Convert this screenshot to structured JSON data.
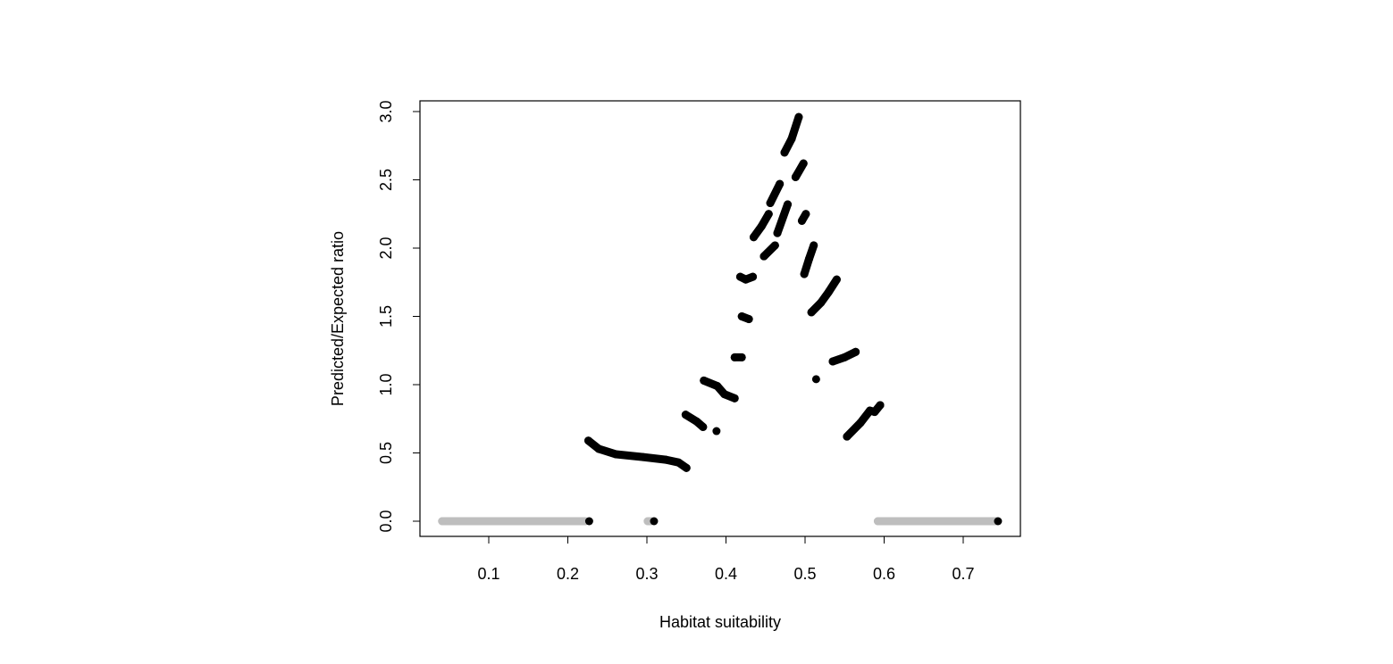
{
  "chart_data": {
    "type": "scatter",
    "title": "",
    "xlabel": "Habitat suitability",
    "ylabel": "Predicted/Expected ratio",
    "xlim": [
      0.03,
      0.77
    ],
    "ylim": [
      -0.11,
      3.08
    ],
    "xticks": [
      0.1,
      0.2,
      0.3,
      0.4,
      0.5,
      0.6,
      0.7
    ],
    "xtick_labels": [
      "0.1",
      "0.2",
      "0.3",
      "0.4",
      "0.5",
      "0.6",
      "0.7"
    ],
    "yticks": [
      0.0,
      0.5,
      1.0,
      1.5,
      2.0,
      2.5,
      3.0
    ],
    "ytick_labels": [
      "0.0",
      "0.5",
      "1.0",
      "1.5",
      "2.0",
      "2.5",
      "3.0"
    ],
    "grid": false,
    "colors": {
      "observed": "#000000",
      "zero": "#bebebe"
    },
    "gray_runs": [
      [
        [
          0.041,
          0
        ],
        [
          0.222,
          0
        ]
      ],
      [
        [
          0.301,
          0
        ],
        [
          0.305,
          0
        ]
      ],
      [
        [
          0.592,
          0
        ],
        [
          0.742,
          0
        ]
      ]
    ],
    "black_runs": [
      [
        [
          0.227,
          0
        ]
      ],
      [
        [
          0.309,
          0
        ]
      ],
      [
        [
          0.744,
          0
        ]
      ],
      [
        [
          0.226,
          0.59
        ],
        [
          0.239,
          0.53
        ],
        [
          0.261,
          0.49
        ],
        [
          0.295,
          0.47
        ],
        [
          0.324,
          0.45
        ],
        [
          0.34,
          0.43
        ],
        [
          0.35,
          0.39
        ]
      ],
      [
        [
          0.349,
          0.78
        ],
        [
          0.363,
          0.73
        ],
        [
          0.371,
          0.69
        ]
      ],
      [
        [
          0.388,
          0.66
        ]
      ],
      [
        [
          0.372,
          1.03
        ],
        [
          0.389,
          0.99
        ],
        [
          0.398,
          0.93
        ],
        [
          0.411,
          0.9
        ]
      ],
      [
        [
          0.411,
          1.2
        ],
        [
          0.42,
          1.2
        ]
      ],
      [
        [
          0.42,
          1.5
        ],
        [
          0.429,
          1.48
        ]
      ],
      [
        [
          0.418,
          1.79
        ],
        [
          0.425,
          1.77
        ],
        [
          0.434,
          1.79
        ]
      ],
      [
        [
          0.435,
          2.08
        ],
        [
          0.445,
          2.16
        ],
        [
          0.454,
          2.25
        ]
      ],
      [
        [
          0.448,
          1.94
        ],
        [
          0.462,
          2.02
        ]
      ],
      [
        [
          0.456,
          2.33
        ],
        [
          0.468,
          2.47
        ]
      ],
      [
        [
          0.465,
          2.11
        ],
        [
          0.478,
          2.32
        ]
      ],
      [
        [
          0.474,
          2.7
        ],
        [
          0.483,
          2.8
        ],
        [
          0.492,
          2.96
        ]
      ],
      [
        [
          0.488,
          2.52
        ],
        [
          0.498,
          2.62
        ]
      ],
      [
        [
          0.496,
          2.2
        ],
        [
          0.501,
          2.25
        ]
      ],
      [
        [
          0.499,
          1.81
        ],
        [
          0.505,
          1.92
        ],
        [
          0.511,
          2.02
        ]
      ],
      [
        [
          0.508,
          1.53
        ],
        [
          0.52,
          1.6
        ],
        [
          0.53,
          1.68
        ],
        [
          0.54,
          1.77
        ]
      ],
      [
        [
          0.514,
          1.04
        ]
      ],
      [
        [
          0.535,
          1.17
        ],
        [
          0.55,
          1.2
        ],
        [
          0.564,
          1.24
        ]
      ],
      [
        [
          0.553,
          0.62
        ],
        [
          0.57,
          0.72
        ],
        [
          0.582,
          0.81
        ],
        [
          0.588,
          0.8
        ],
        [
          0.595,
          0.85
        ]
      ]
    ]
  }
}
